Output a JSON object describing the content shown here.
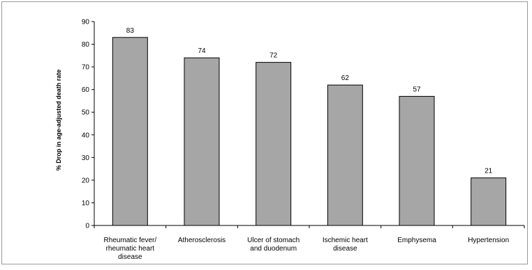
{
  "chart_data": {
    "type": "bar",
    "title": "",
    "xlabel": "",
    "ylabel": "% Drop in age-adjusted death rate",
    "ylim": [
      0,
      90
    ],
    "yticks": [
      0,
      10,
      20,
      30,
      40,
      50,
      60,
      70,
      80,
      90
    ],
    "grid": false,
    "legend": "none",
    "bar_color": "#a6a6a6",
    "categories": [
      [
        "Rheumatic fever/",
        "rheumatic heart",
        "disease"
      ],
      [
        "Atherosclerosis"
      ],
      [
        "Ulcer of stomach",
        "and duodenum"
      ],
      [
        "Ischemic heart",
        "disease"
      ],
      [
        "Emphysema"
      ],
      [
        "Hypertension"
      ]
    ],
    "values": [
      83,
      74,
      72,
      62,
      57,
      21
    ]
  }
}
